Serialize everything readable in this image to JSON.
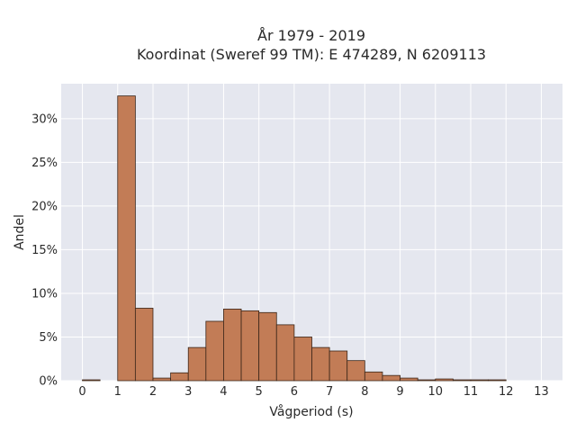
{
  "chart_data": {
    "type": "bar",
    "title": "År 1979 - 2019",
    "subtitle": "Koordinat (Sweref 99 TM): E 474289, N 6209113",
    "xlabel": "Vågperiod (s)",
    "ylabel": "Andel",
    "xlim": [
      -0.6,
      13.6
    ],
    "ylim": [
      0,
      0.34
    ],
    "xticks": [
      0,
      1,
      2,
      3,
      4,
      5,
      6,
      7,
      8,
      9,
      10,
      11,
      12,
      13
    ],
    "xtick_labels": [
      "0",
      "1",
      "2",
      "3",
      "4",
      "5",
      "6",
      "7",
      "8",
      "9",
      "10",
      "11",
      "12",
      "13"
    ],
    "yticks": [
      0,
      0.05,
      0.1,
      0.15,
      0.2,
      0.25,
      0.3
    ],
    "ytick_labels": [
      "0%",
      "5%",
      "10%",
      "15%",
      "20%",
      "25%",
      "30%"
    ],
    "bin_width": 0.5,
    "grid": true,
    "bar_color": "#c27c56",
    "bar_edge_color": "#3a2518",
    "background_color": "#e5e7ef",
    "series": [
      {
        "bins": [
          {
            "x": 0.0,
            "value": 0.001
          },
          {
            "x": 1.0,
            "value": 0.326
          },
          {
            "x": 1.5,
            "value": 0.083
          },
          {
            "x": 2.0,
            "value": 0.003
          },
          {
            "x": 2.5,
            "value": 0.009
          },
          {
            "x": 3.0,
            "value": 0.038
          },
          {
            "x": 3.5,
            "value": 0.068
          },
          {
            "x": 4.0,
            "value": 0.082
          },
          {
            "x": 4.5,
            "value": 0.08
          },
          {
            "x": 5.0,
            "value": 0.078
          },
          {
            "x": 5.5,
            "value": 0.064
          },
          {
            "x": 6.0,
            "value": 0.05
          },
          {
            "x": 6.5,
            "value": 0.038
          },
          {
            "x": 7.0,
            "value": 0.034
          },
          {
            "x": 7.5,
            "value": 0.023
          },
          {
            "x": 8.0,
            "value": 0.01
          },
          {
            "x": 8.5,
            "value": 0.006
          },
          {
            "x": 9.0,
            "value": 0.003
          },
          {
            "x": 9.5,
            "value": 0.001
          },
          {
            "x": 10.0,
            "value": 0.002
          },
          {
            "x": 10.5,
            "value": 0.001
          },
          {
            "x": 11.0,
            "value": 0.001
          },
          {
            "x": 11.5,
            "value": 0.001
          }
        ]
      }
    ]
  }
}
